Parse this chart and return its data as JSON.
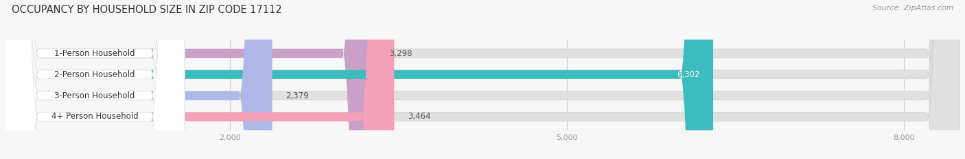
{
  "title": "OCCUPANCY BY HOUSEHOLD SIZE IN ZIP CODE 17112",
  "source": "Source: ZipAtlas.com",
  "categories": [
    "1-Person Household",
    "2-Person Household",
    "3-Person Household",
    "4+ Person Household"
  ],
  "values": [
    3298,
    6302,
    2379,
    3464
  ],
  "bar_colors": [
    "#c9a0c8",
    "#3bbcbe",
    "#b0b8e8",
    "#f4a0b8"
  ],
  "bar_bg_color": "#e0e0e0",
  "xlim_max": 8500,
  "xticks": [
    2000,
    5000,
    8000
  ],
  "xtick_labels": [
    "2,000",
    "5,000",
    "8,000"
  ],
  "background_color": "#f7f7f7",
  "bar_height": 0.42,
  "label_fontsize": 8.5,
  "title_fontsize": 10.5,
  "source_fontsize": 8
}
